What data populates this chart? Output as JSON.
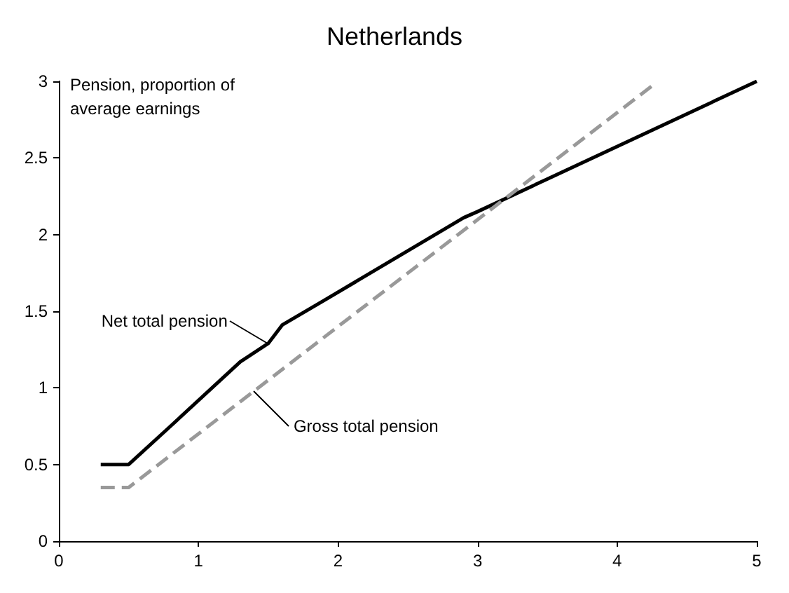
{
  "chart_data": {
    "type": "line",
    "title": "Netherlands",
    "ylabel": "Pension, proportion of average earnings",
    "series": [
      {
        "name": "Net total pension",
        "color": "#000000",
        "line_style": "solid",
        "x": [
          0.3,
          0.5,
          0.8,
          1.3,
          1.5,
          1.6,
          1.9,
          2.9,
          3,
          5
        ],
        "values": [
          0.5,
          0.5,
          0.75,
          1.17,
          1.29,
          1.41,
          1.57,
          2.11,
          2.15,
          3
        ]
      },
      {
        "name": "Gross total pension",
        "color": "#999999",
        "line_style": "dashed",
        "x": [
          0.3,
          0.5,
          2,
          4.25
        ],
        "values": [
          0.35,
          0.35,
          1.4,
          2.97
        ]
      }
    ],
    "xlim": [
      0,
      5
    ],
    "xticks": [
      0,
      1,
      2,
      3,
      4,
      5
    ],
    "ylim": [
      0,
      3
    ],
    "yticks": [
      0,
      0.5,
      1,
      1.5,
      2,
      2.5,
      3
    ],
    "grid": false,
    "marker": "none"
  }
}
